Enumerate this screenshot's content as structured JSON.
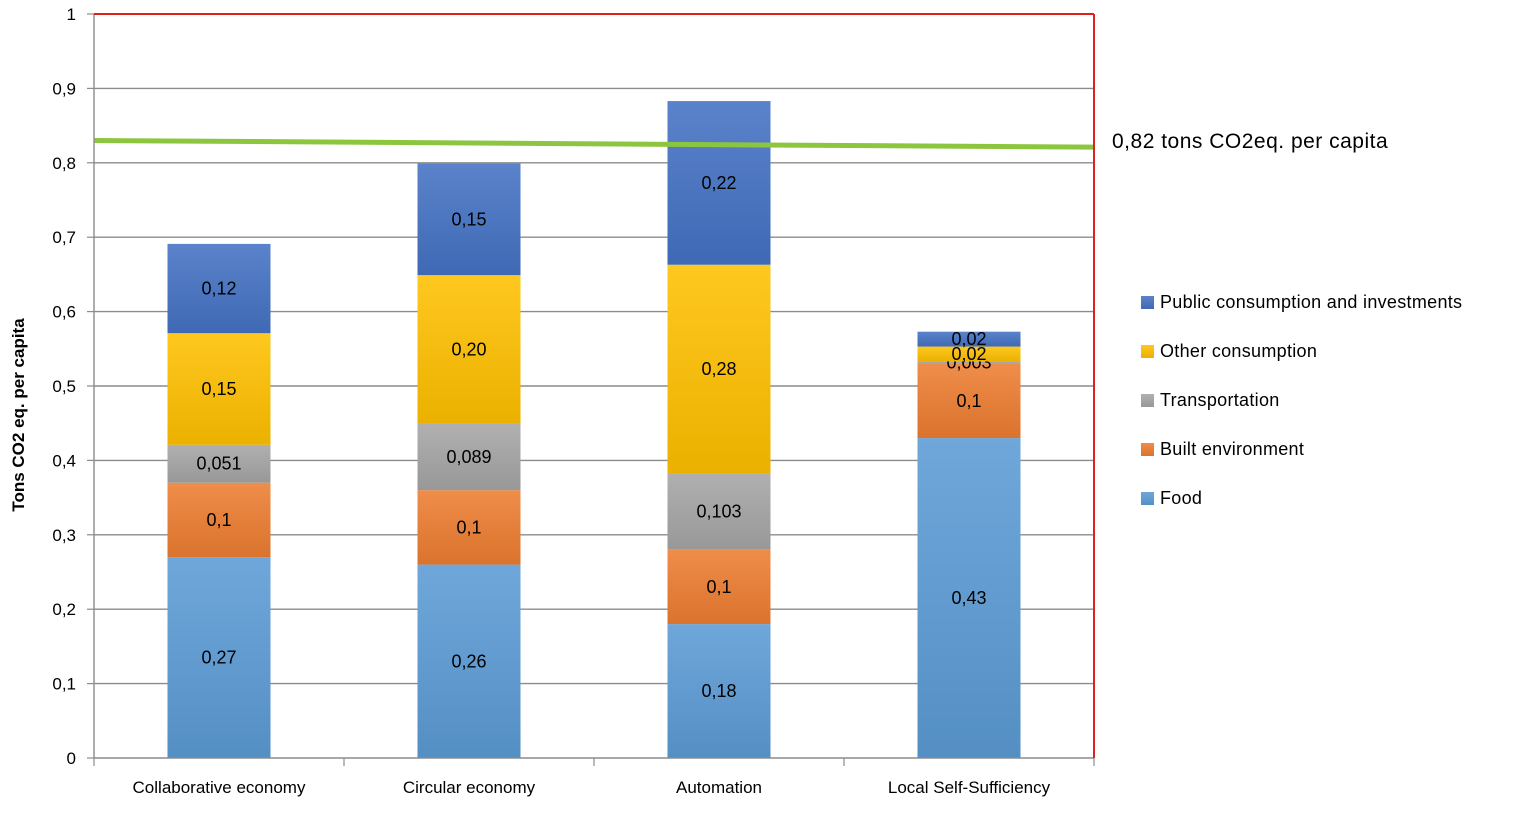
{
  "chart_data": {
    "type": "bar",
    "stacked": true,
    "categories": [
      "Collaborative economy",
      "Circular economy",
      "Automation",
      "Local Self-Sufficiency"
    ],
    "series": [
      {
        "name": "Food",
        "values": [
          0.27,
          0.26,
          0.18,
          0.43
        ],
        "labels": [
          "0,27",
          "0,26",
          "0,18",
          "0,43"
        ],
        "color": "#5B9BD5"
      },
      {
        "name": "Built environment",
        "values": [
          0.1,
          0.1,
          0.1,
          0.1
        ],
        "labels": [
          "0,1",
          "0,1",
          "0,1",
          "0,1"
        ],
        "color": "#ED7D31"
      },
      {
        "name": "Transportation",
        "values": [
          0.051,
          0.089,
          0.103,
          0.003
        ],
        "labels": [
          "0,051",
          "0,089",
          "0,103",
          "0,003"
        ],
        "color": "#A5A5A5"
      },
      {
        "name": "Other consumption",
        "values": [
          0.15,
          0.2,
          0.28,
          0.02
        ],
        "labels": [
          "0,15",
          "0,20",
          "0,28",
          "0,02"
        ],
        "color": "#FFC000"
      },
      {
        "name": "Public consumption and investments",
        "values": [
          0.12,
          0.15,
          0.22,
          0.02
        ],
        "labels": [
          "0,12",
          "0,15",
          "0,22",
          "0,02"
        ],
        "color": "#4472C4"
      }
    ],
    "ylabel": "Tons CO2 eq. per capita",
    "xlabel": "",
    "title": "",
    "ylim": [
      0,
      1
    ],
    "yticks": [
      0,
      0.1,
      0.2,
      0.3,
      0.4,
      0.5,
      0.6,
      0.7,
      0.8,
      0.9,
      1
    ],
    "yticklabels": [
      "0",
      "0,1",
      "0,2",
      "0,3",
      "0,4",
      "0,5",
      "0,6",
      "0,7",
      "0,8",
      "0,9",
      "1"
    ],
    "grid": true,
    "legend_position": "right",
    "reference_line": {
      "value": 0.82,
      "label": "0,82 tons CO2eq. per capita",
      "color": "#8CC63F"
    },
    "plot_border_color": "#E02020"
  }
}
